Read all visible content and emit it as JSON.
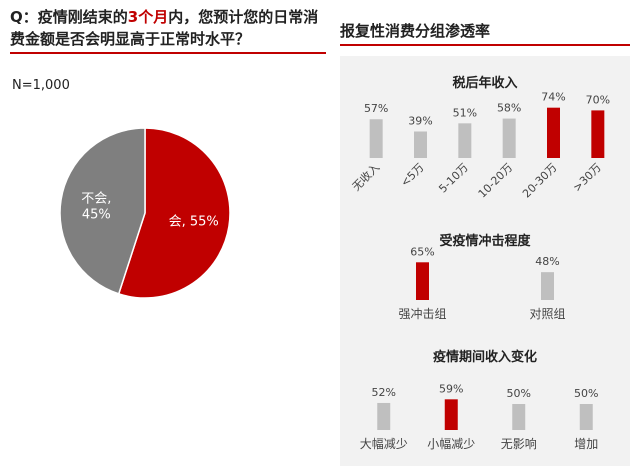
{
  "question": {
    "prefix": "Q：疫情刚结束的",
    "highlight": "3个月",
    "suffix": "内，您预计您的日常消费金额是否会明显高于正常时水平？"
  },
  "sample": "N=1,000",
  "panel_title": "报复性消费分组渗透率",
  "colors": {
    "red": "#c00000",
    "gray": "#7f7f7f",
    "light_gray": "#bfbfbf"
  },
  "chart_data": [
    {
      "type": "pie",
      "categories": [
        "会",
        "不会"
      ],
      "values": [
        55,
        45
      ],
      "labels": [
        "会, 55%",
        "不会,\n45%"
      ]
    },
    {
      "type": "bar",
      "title": "税后年收入",
      "categories": [
        "无收入",
        "<5万",
        "5-10万",
        "10-20万",
        "20-30万",
        ">30万"
      ],
      "values": [
        57,
        39,
        51,
        58,
        74,
        70
      ],
      "highlight": [
        false,
        false,
        false,
        false,
        true,
        true
      ]
    },
    {
      "type": "bar",
      "title": "受疫情冲击程度",
      "categories": [
        "强冲击组",
        "对照组"
      ],
      "values": [
        65,
        48
      ],
      "highlight": [
        true,
        false
      ]
    },
    {
      "type": "bar",
      "title": "疫情期间收入变化",
      "categories": [
        "大幅减少",
        "小幅减少",
        "无影响",
        "增加"
      ],
      "values": [
        52,
        59,
        50,
        50
      ],
      "highlight": [
        false,
        true,
        false,
        false
      ]
    }
  ]
}
